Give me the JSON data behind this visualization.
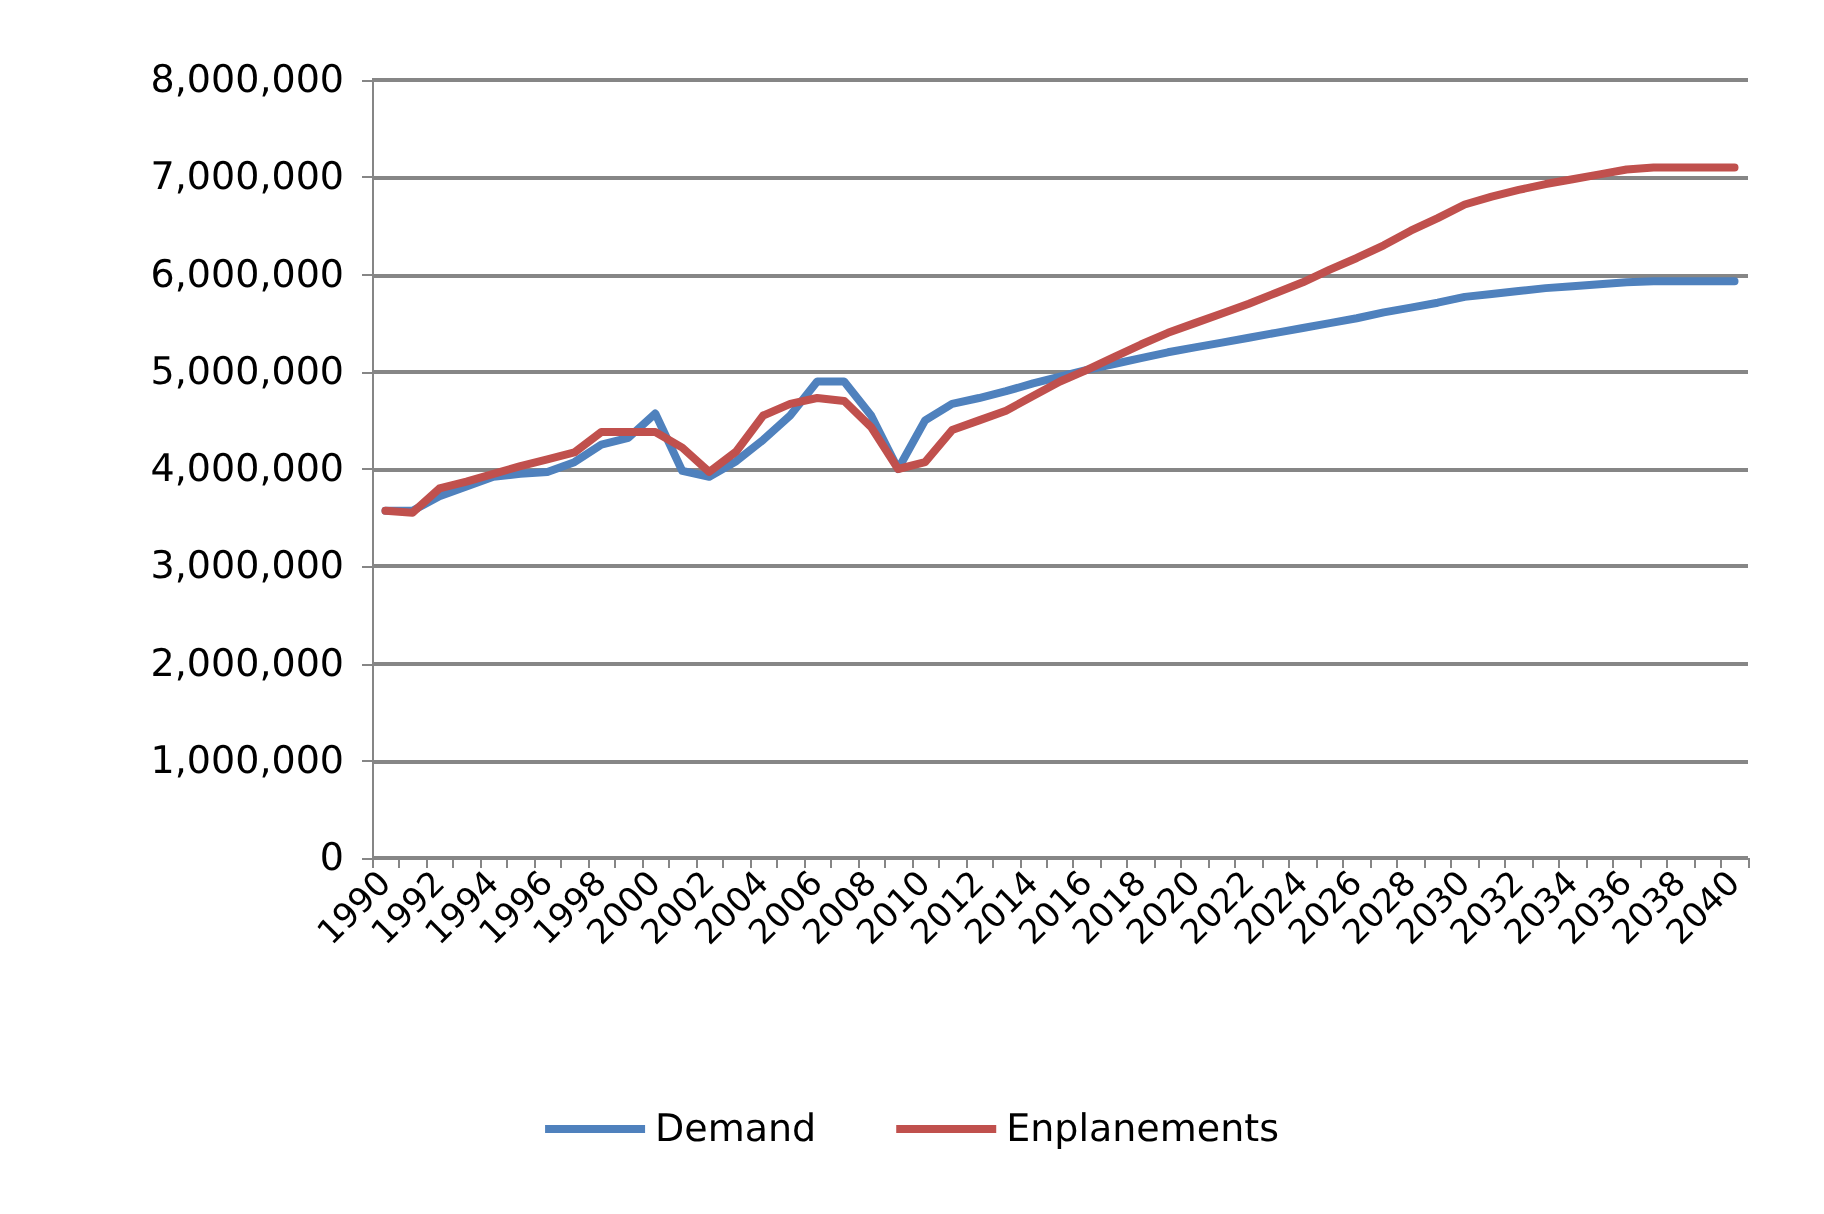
{
  "chart_data": {
    "type": "line",
    "categories": [
      "1990",
      null,
      "1992",
      null,
      "1994",
      null,
      "1996",
      null,
      "1998",
      null,
      "2000",
      null,
      "2002",
      null,
      "2004",
      null,
      "2006",
      null,
      "2008",
      null,
      "2010",
      null,
      "2012",
      null,
      "2014",
      null,
      "2016",
      null,
      "2018",
      null,
      "2020",
      null,
      "2022",
      null,
      "2024",
      null,
      "2026",
      null,
      "2028",
      null,
      "2030",
      null,
      "2032",
      null,
      "2034",
      null,
      "2036",
      null,
      "2038",
      null,
      "2040"
    ],
    "series": [
      {
        "name": "Demand",
        "color": "#4f81bd",
        "values": [
          3570000,
          3570000,
          3720000,
          3820000,
          3920000,
          3950000,
          3970000,
          4070000,
          4250000,
          4320000,
          4570000,
          3980000,
          3920000,
          4080000,
          4300000,
          4550000,
          4900000,
          4900000,
          4550000,
          4000000,
          4500000,
          4670000,
          4730000,
          4800000,
          4880000,
          4950000,
          5020000,
          5080000,
          5140000,
          5200000,
          5250000,
          5300000,
          5350000,
          5400000,
          5450000,
          5500000,
          5550000,
          5610000,
          5660000,
          5710000,
          5770000,
          5800000,
          5830000,
          5860000,
          5880000,
          5900000,
          5920000,
          5930000,
          5930000,
          5930000,
          5930000
        ]
      },
      {
        "name": "Enplanements",
        "color": "#c0504d",
        "values": [
          3570000,
          3550000,
          3800000,
          3870000,
          3950000,
          4030000,
          4100000,
          4170000,
          4380000,
          4380000,
          4380000,
          4220000,
          3970000,
          4180000,
          4550000,
          4670000,
          4730000,
          4700000,
          4430000,
          4000000,
          4070000,
          4400000,
          4500000,
          4600000,
          4750000,
          4900000,
          5020000,
          5150000,
          5280000,
          5400000,
          5500000,
          5600000,
          5700000,
          5810000,
          5920000,
          6050000,
          6170000,
          6300000,
          6450000,
          6580000,
          6720000,
          6800000,
          6870000,
          6930000,
          6980000,
          7030000,
          7080000,
          7100000,
          7100000,
          7100000,
          7100000
        ]
      }
    ],
    "ylim": [
      0,
      8000000
    ],
    "yticks": [
      {
        "value": 0,
        "label": "0"
      },
      {
        "value": 1000000,
        "label": "1,000,000"
      },
      {
        "value": 2000000,
        "label": "2,000,000"
      },
      {
        "value": 3000000,
        "label": "3,000,000"
      },
      {
        "value": 4000000,
        "label": "4,000,000"
      },
      {
        "value": 5000000,
        "label": "5,000,000"
      },
      {
        "value": 6000000,
        "label": "6,000,000"
      },
      {
        "value": 7000000,
        "label": "7,000,000"
      },
      {
        "value": 8000000,
        "label": "8,000,000"
      }
    ],
    "grid": "y",
    "legend": "bottom",
    "marker": "none",
    "line_style": "solid"
  }
}
